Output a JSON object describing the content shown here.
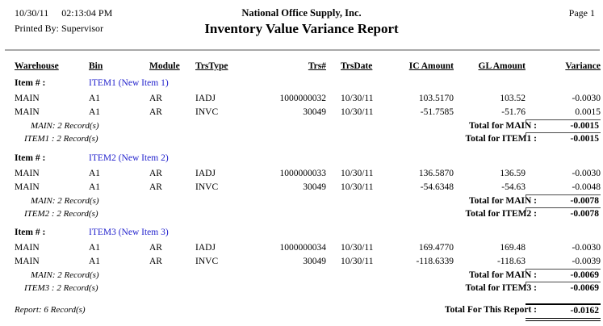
{
  "page_header": {
    "date": "10/30/11",
    "time": "02:13:04 PM",
    "printed_by": "Printed By: Supervisor",
    "company": "National Office Supply, Inc.",
    "title": "Inventory Value Variance Report",
    "page_label": "Page 1"
  },
  "columns": [
    "Warehouse",
    "Bin",
    "Module",
    "TrsType",
    "Trs#",
    "TrsDate",
    "IC Amount",
    "GL Amount",
    "Variance"
  ],
  "item_prefix": "Item # :",
  "groups": [
    {
      "item": "ITEM1 (New Item 1)",
      "rows": [
        {
          "warehouse": "MAIN",
          "bin": "A1",
          "module": "AR",
          "trstype": "IADJ",
          "trs": "1000000032",
          "trsdate": "10/30/11",
          "ic": "103.5170",
          "gl": "103.52",
          "variance": "-0.0030"
        },
        {
          "warehouse": "MAIN",
          "bin": "A1",
          "module": "AR",
          "trstype": "INVC",
          "trs": "30049",
          "trsdate": "10/30/11",
          "ic": "-51.7585",
          "gl": "-51.76",
          "variance": "0.0015"
        }
      ],
      "warehouse_count": "MAIN: 2 Record(s)",
      "warehouse_total_label": "Total for MAIN :",
      "warehouse_total": "-0.0015",
      "item_count": "ITEM1 : 2 Record(s)",
      "item_total_label": "Total for ITEM1 :",
      "item_total": "-0.0015"
    },
    {
      "item": "ITEM2 (New Item 2)",
      "rows": [
        {
          "warehouse": "MAIN",
          "bin": "A1",
          "module": "AR",
          "trstype": "IADJ",
          "trs": "1000000033",
          "trsdate": "10/30/11",
          "ic": "136.5870",
          "gl": "136.59",
          "variance": "-0.0030"
        },
        {
          "warehouse": "MAIN",
          "bin": "A1",
          "module": "AR",
          "trstype": "INVC",
          "trs": "30049",
          "trsdate": "10/30/11",
          "ic": "-54.6348",
          "gl": "-54.63",
          "variance": "-0.0048"
        }
      ],
      "warehouse_count": "MAIN: 2 Record(s)",
      "warehouse_total_label": "Total for MAIN :",
      "warehouse_total": "-0.0078",
      "item_count": "ITEM2 : 2 Record(s)",
      "item_total_label": "Total for ITEM2 :",
      "item_total": "-0.0078"
    },
    {
      "item": "ITEM3 (New Item 3)",
      "rows": [
        {
          "warehouse": "MAIN",
          "bin": "A1",
          "module": "AR",
          "trstype": "IADJ",
          "trs": "1000000034",
          "trsdate": "10/30/11",
          "ic": "169.4770",
          "gl": "169.48",
          "variance": "-0.0030"
        },
        {
          "warehouse": "MAIN",
          "bin": "A1",
          "module": "AR",
          "trstype": "INVC",
          "trs": "30049",
          "trsdate": "10/30/11",
          "ic": "-118.6339",
          "gl": "-118.63",
          "variance": "-0.0039"
        }
      ],
      "warehouse_count": "MAIN: 2 Record(s)",
      "warehouse_total_label": "Total for MAIN :",
      "warehouse_total": "-0.0069",
      "item_count": "ITEM3 : 2 Record(s)",
      "item_total_label": "Total for ITEM3 :",
      "item_total": "-0.0069"
    }
  ],
  "report_footer": {
    "count": "Report: 6 Record(s)",
    "total_label": "Total For This Report :",
    "total": "-0.0162"
  },
  "colors": {
    "item_name_blue": "#2323cd",
    "header_rule_gray": "#a9a9a9",
    "total_rule": "#4a4a4a"
  }
}
